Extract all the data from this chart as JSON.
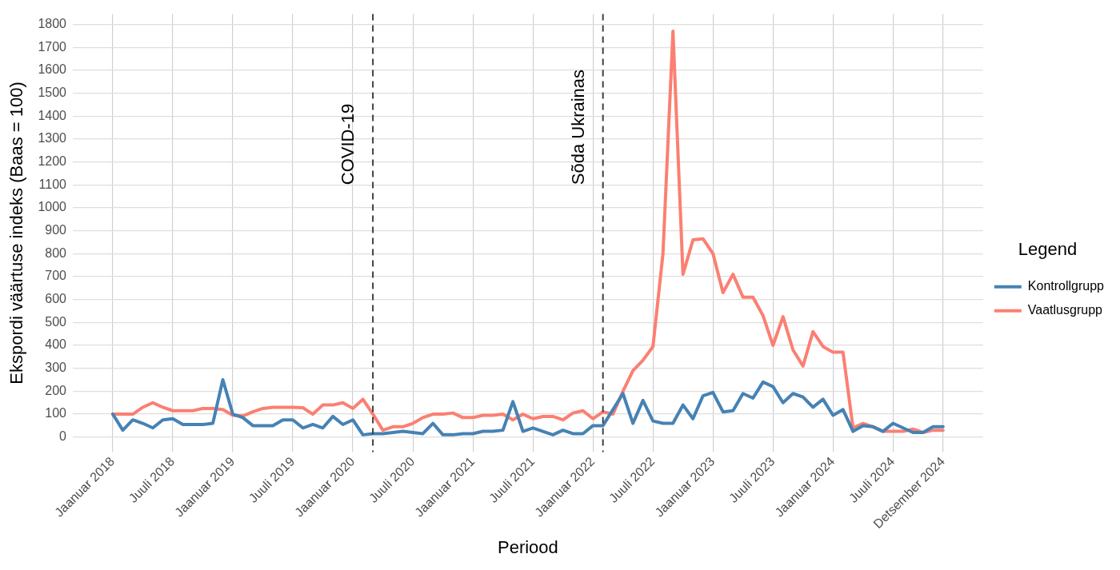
{
  "chart_data": {
    "type": "line",
    "xlabel": "Periood",
    "ylabel": "Ekspordi väärtuse indeks (Baas = 100)",
    "legend_title": "Legend",
    "legend": "right",
    "grid": true,
    "line_style": "solid",
    "marker": "none",
    "x": [
      "2018-01",
      "2018-02",
      "2018-03",
      "2018-04",
      "2018-05",
      "2018-06",
      "2018-07",
      "2018-08",
      "2018-09",
      "2018-10",
      "2018-11",
      "2018-12",
      "2019-01",
      "2019-02",
      "2019-03",
      "2019-04",
      "2019-05",
      "2019-06",
      "2019-07",
      "2019-08",
      "2019-09",
      "2019-10",
      "2019-11",
      "2019-12",
      "2020-01",
      "2020-02",
      "2020-03",
      "2020-04",
      "2020-05",
      "2020-06",
      "2020-07",
      "2020-08",
      "2020-09",
      "2020-10",
      "2020-11",
      "2020-12",
      "2021-01",
      "2021-02",
      "2021-03",
      "2021-04",
      "2021-05",
      "2021-06",
      "2021-07",
      "2021-08",
      "2021-09",
      "2021-10",
      "2021-11",
      "2021-12",
      "2022-01",
      "2022-02",
      "2022-03",
      "2022-04",
      "2022-05",
      "2022-06",
      "2022-07",
      "2022-08",
      "2022-09",
      "2022-10",
      "2022-11",
      "2022-12",
      "2023-01",
      "2023-02",
      "2023-03",
      "2023-04",
      "2023-05",
      "2023-06",
      "2023-07",
      "2023-08",
      "2023-09",
      "2023-10",
      "2023-11",
      "2023-12",
      "2024-01",
      "2024-02",
      "2024-03",
      "2024-04",
      "2024-05",
      "2024-06",
      "2024-07",
      "2024-08",
      "2024-09",
      "2024-10",
      "2024-11",
      "2024-12"
    ],
    "series": [
      {
        "name": "Kontrollgrupp",
        "color": "#4682b4",
        "values": [
          100,
          30,
          75,
          60,
          40,
          75,
          80,
          55,
          55,
          55,
          60,
          250,
          100,
          85,
          50,
          50,
          50,
          75,
          75,
          40,
          55,
          40,
          90,
          55,
          75,
          10,
          15,
          15,
          20,
          25,
          20,
          15,
          60,
          10,
          10,
          15,
          15,
          25,
          25,
          30,
          155,
          25,
          40,
          25,
          10,
          30,
          15,
          15,
          50,
          50,
          120,
          190,
          60,
          160,
          70,
          60,
          60,
          140,
          80,
          180,
          195,
          110,
          115,
          190,
          170,
          240,
          220,
          150,
          190,
          175,
          130,
          165,
          95,
          120,
          25,
          50,
          45,
          25,
          60,
          40,
          20,
          20,
          45,
          45
        ]
      },
      {
        "name": "Vaatlusgrupp",
        "color": "#fa8072",
        "values": [
          100,
          100,
          100,
          130,
          150,
          130,
          115,
          115,
          115,
          125,
          125,
          120,
          95,
          92,
          110,
          125,
          130,
          130,
          130,
          128,
          100,
          140,
          140,
          150,
          125,
          165,
          100,
          30,
          45,
          45,
          60,
          85,
          100,
          100,
          105,
          85,
          85,
          95,
          95,
          100,
          75,
          100,
          80,
          90,
          90,
          75,
          105,
          115,
          80,
          110,
          100,
          200,
          290,
          335,
          395,
          800,
          1770,
          710,
          860,
          865,
          800,
          630,
          710,
          610,
          610,
          530,
          400,
          525,
          380,
          310,
          460,
          395,
          370,
          370,
          40,
          60,
          45,
          25,
          25,
          25,
          35,
          20,
          30,
          30
        ]
      }
    ],
    "xlim": [
      "2017-09",
      "2025-04"
    ],
    "xticks": [
      {
        "value": "2018-01",
        "label": "Jaanuar 2018"
      },
      {
        "value": "2018-07",
        "label": "Juuli 2018"
      },
      {
        "value": "2019-01",
        "label": "Jaanuar 2019"
      },
      {
        "value": "2019-07",
        "label": "Juuli 2019"
      },
      {
        "value": "2020-01",
        "label": "Jaanuar 2020"
      },
      {
        "value": "2020-07",
        "label": "Juuli 2020"
      },
      {
        "value": "2021-01",
        "label": "Jaanuar 2021"
      },
      {
        "value": "2021-07",
        "label": "Juuli 2021"
      },
      {
        "value": "2022-01",
        "label": "Jaanuar 2022"
      },
      {
        "value": "2022-07",
        "label": "Juuli 2022"
      },
      {
        "value": "2023-01",
        "label": "Jaanuar 2023"
      },
      {
        "value": "2023-07",
        "label": "Juuli 2023"
      },
      {
        "value": "2024-01",
        "label": "Jaanuar 2024"
      },
      {
        "value": "2024-07",
        "label": "Juuli 2024"
      },
      {
        "value": "2024-12",
        "label": "Detsember 2024"
      }
    ],
    "ylim": [
      -65,
      1845
    ],
    "yticks": [
      0,
      100,
      200,
      300,
      400,
      500,
      600,
      700,
      800,
      900,
      1000,
      1100,
      1200,
      1300,
      1400,
      1500,
      1600,
      1700,
      1800
    ],
    "ref_lines": [
      {
        "axis": "x",
        "value": "2020-03",
        "label": "COVID-19",
        "color": "#404040",
        "line_style": "dashed"
      },
      {
        "axis": "x",
        "value": "2022-02",
        "label": "Sõda Ukrainas",
        "color": "#404040",
        "line_style": "dashed"
      }
    ]
  }
}
